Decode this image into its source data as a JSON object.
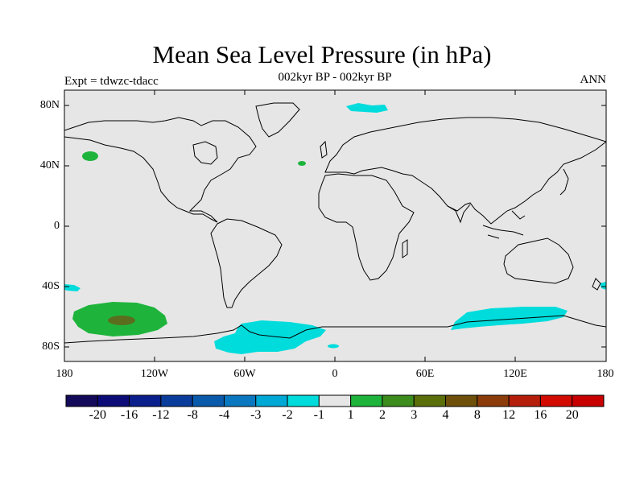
{
  "title": "Mean Sea Level Pressure (in hPa)",
  "subtitle": "002kyr BP - 002kyr BP",
  "experiment": "Expt = tdwzc-tdacc",
  "season": "ANN",
  "lat_labels": [
    "80N",
    "40N",
    "0",
    "40S",
    "80S"
  ],
  "lon_labels": [
    "180",
    "120W",
    "60W",
    "0",
    "60E",
    "120E",
    "180"
  ],
  "colorbar": {
    "labels": [
      "-20",
      "-16",
      "-12",
      "-8",
      "-4",
      "-3",
      "-2",
      "-1",
      "1",
      "2",
      "3",
      "4",
      "8",
      "12",
      "16",
      "20"
    ],
    "colors": [
      "#140a5a",
      "#0c0c78",
      "#0a1e8c",
      "#0a3c9c",
      "#0a5aac",
      "#0a78c0",
      "#00a8d6",
      "#00dcdc",
      "#e6e6e6",
      "#1eb43c",
      "#3c8c1e",
      "#5a6e0a",
      "#6e500a",
      "#8c3c0a",
      "#b41e0a",
      "#d20a00",
      "#c80000"
    ]
  },
  "colors": {
    "ocean_background": "#e6e6e6",
    "negative_anomaly": "#00dcdc",
    "positive_anomaly": "#1eb43c",
    "strong_positive": "#5a6e1e"
  }
}
